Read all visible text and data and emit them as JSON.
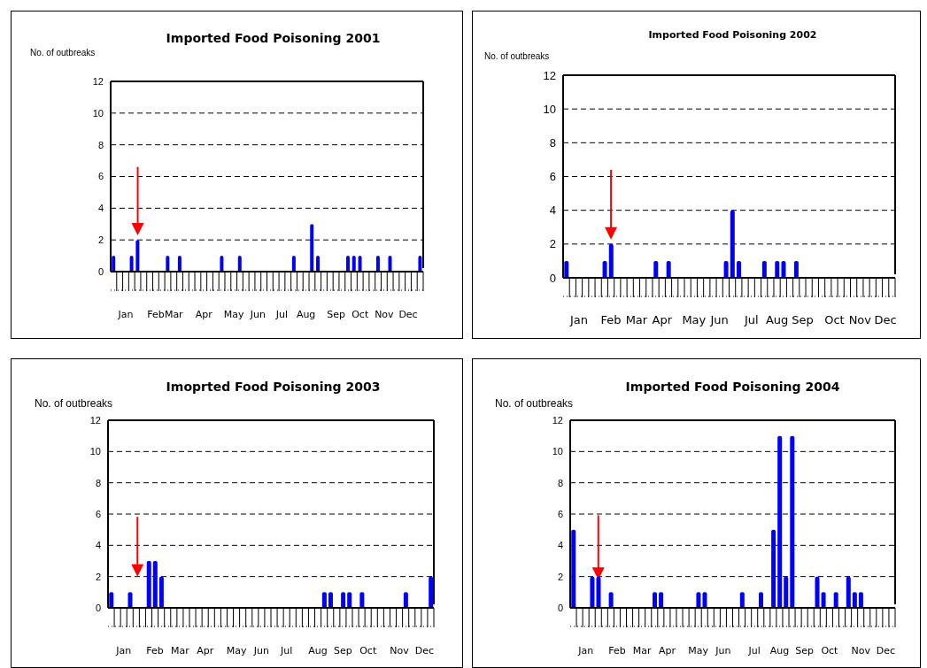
{
  "chart_data": [
    {
      "type": "bar",
      "title": "Imported Food Poisoning 2001",
      "ylabel": "No. of outbreaks",
      "categories": [
        null,
        null,
        "Jan",
        null,
        null,
        null,
        null,
        "Feb",
        null,
        null,
        "Mar",
        null,
        null,
        null,
        null,
        "Apr",
        null,
        null,
        null,
        null,
        "May",
        null,
        null,
        null,
        "Jun",
        null,
        null,
        null,
        "Jul",
        null,
        null,
        null,
        "Aug",
        null,
        null,
        null,
        null,
        "Sep",
        null,
        null,
        null,
        "Oct",
        null,
        null,
        null,
        "Nov",
        null,
        null,
        null,
        "Dec",
        null,
        null
      ],
      "values": [
        1,
        0,
        0,
        1,
        2,
        0,
        0,
        0,
        0,
        1,
        0,
        1,
        0,
        0,
        0,
        0,
        0,
        0,
        1,
        0,
        0,
        1,
        0,
        0,
        0,
        0,
        0,
        0,
        0,
        0,
        1,
        0,
        0,
        3,
        1,
        0,
        0,
        0,
        0,
        1,
        1,
        1,
        0,
        0,
        1,
        0,
        1,
        0,
        0,
        0,
        0,
        1
      ],
      "color": "#0000ff",
      "ylim": [
        0,
        12
      ],
      "yticks": [
        0,
        2,
        4,
        6,
        8,
        10,
        12
      ],
      "grid": "y"
    },
    {
      "type": "bar",
      "title": "Imported Food Poisoning 2002",
      "ylabel": "No. of outbreaks",
      "categories": [
        null,
        null,
        "Jan",
        null,
        null,
        null,
        null,
        "Feb",
        null,
        null,
        null,
        "Mar",
        null,
        null,
        null,
        "Apr",
        null,
        null,
        null,
        null,
        "May",
        null,
        null,
        null,
        "Jun",
        null,
        null,
        null,
        null,
        "Jul",
        null,
        null,
        null,
        "Aug",
        null,
        null,
        null,
        "Sep",
        null,
        null,
        null,
        null,
        "Oct",
        null,
        null,
        null,
        "Nov",
        null,
        null,
        null,
        "Dec",
        null
      ],
      "values": [
        1,
        0,
        0,
        0,
        0,
        0,
        1,
        2,
        0,
        0,
        0,
        0,
        0,
        0,
        1,
        0,
        1,
        0,
        0,
        0,
        0,
        0,
        0,
        0,
        0,
        1,
        4,
        1,
        0,
        0,
        0,
        1,
        0,
        1,
        1,
        0,
        1,
        0,
        0,
        0,
        0,
        0,
        0,
        0,
        0,
        0,
        0,
        0,
        0,
        0,
        0,
        0
      ],
      "color": "#0000ff",
      "ylim": [
        0,
        12
      ],
      "yticks": [
        0,
        2,
        4,
        6,
        8,
        10,
        12
      ],
      "grid": "y"
    },
    {
      "type": "bar",
      "title": "Imoprted Food Poisoning 2003",
      "ylabel": "No. of outbreaks",
      "categories": [
        null,
        null,
        "Jan",
        null,
        null,
        null,
        null,
        "Feb",
        null,
        null,
        null,
        "Mar",
        null,
        null,
        null,
        "Apr",
        null,
        null,
        null,
        null,
        "May",
        null,
        null,
        null,
        "Jun",
        null,
        null,
        null,
        "Jul",
        null,
        null,
        null,
        null,
        "Aug",
        null,
        null,
        null,
        "Sep",
        null,
        null,
        null,
        "Oct",
        null,
        null,
        null,
        null,
        "Nov",
        null,
        null,
        null,
        "Dec",
        null
      ],
      "values": [
        1,
        0,
        0,
        1,
        0,
        0,
        3,
        3,
        2,
        0,
        0,
        0,
        0,
        0,
        0,
        0,
        0,
        0,
        0,
        0,
        0,
        0,
        0,
        0,
        0,
        0,
        0,
        0,
        0,
        0,
        0,
        0,
        0,
        0,
        1,
        1,
        0,
        1,
        1,
        0,
        1,
        0,
        0,
        0,
        0,
        0,
        0,
        1,
        0,
        0,
        0,
        2
      ],
      "color": "#0000ff",
      "ylim": [
        0,
        12
      ],
      "yticks": [
        0,
        2,
        4,
        6,
        8,
        10,
        12
      ],
      "grid": "y"
    },
    {
      "type": "bar",
      "title": "Imported Food Poisoning 2004",
      "ylabel": "No. of outbreaks",
      "categories": [
        null,
        null,
        "Jan",
        null,
        null,
        null,
        null,
        "Feb",
        null,
        null,
        null,
        "Mar",
        null,
        null,
        null,
        "Apr",
        null,
        null,
        null,
        null,
        "May",
        null,
        null,
        null,
        "Jun",
        null,
        null,
        null,
        null,
        "Jul",
        null,
        null,
        null,
        "Aug",
        null,
        null,
        null,
        "Sep",
        null,
        null,
        null,
        "Oct",
        null,
        null,
        null,
        null,
        "Nov",
        null,
        null,
        null,
        "Dec",
        null
      ],
      "values": [
        5,
        0,
        0,
        2,
        2,
        0,
        1,
        0,
        0,
        0,
        0,
        0,
        0,
        1,
        1,
        0,
        0,
        0,
        0,
        0,
        1,
        1,
        0,
        0,
        0,
        0,
        0,
        1,
        0,
        0,
        1,
        0,
        5,
        11,
        2,
        11,
        0,
        0,
        0,
        2,
        1,
        0,
        1,
        0,
        2,
        1,
        1,
        0,
        0,
        0,
        0,
        0
      ],
      "color": "#0000ff",
      "ylim": [
        0,
        12
      ],
      "yticks": [
        0,
        2,
        4,
        6,
        8,
        10,
        12
      ],
      "grid": "y"
    }
  ]
}
